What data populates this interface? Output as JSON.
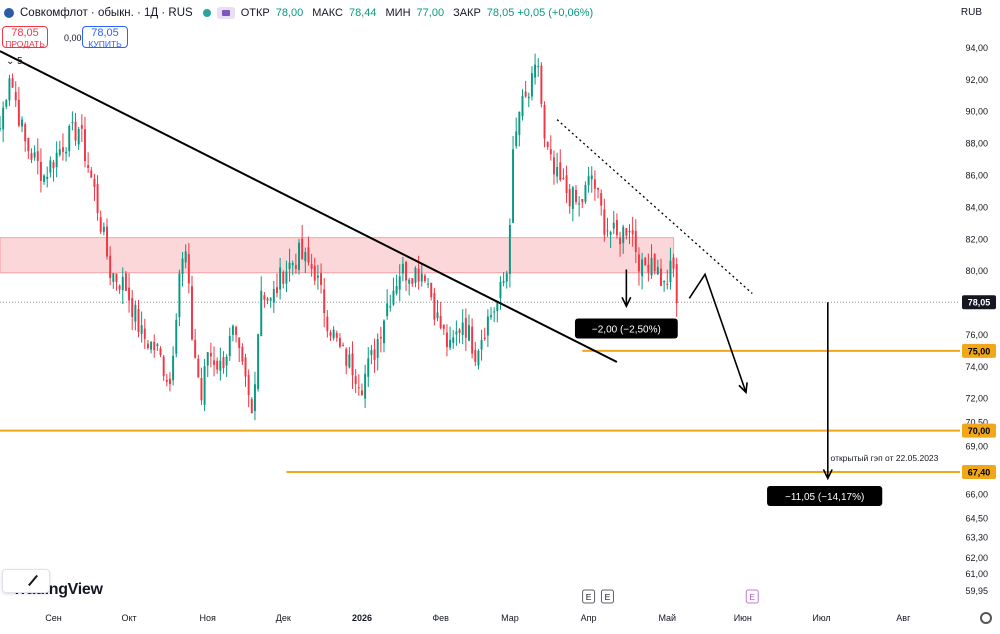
{
  "header": {
    "title": "Совкомфлот · обыкн. · 1Д · RUS",
    "ohlc": [
      {
        "k": "ОТКР",
        "v": "78,00"
      },
      {
        "k": "МАКС",
        "v": "78,44"
      },
      {
        "k": "МИН",
        "v": "77,00"
      },
      {
        "k": "ЗАКР",
        "v": "78,05 +0,05 (+0,06%)"
      }
    ],
    "currency": "RUB"
  },
  "trade": {
    "sell_price": "78,05",
    "sell_label": "ПРОДАТЬ",
    "spread": "0,00",
    "buy_price": "78,05",
    "buy_label": "КУПИТЬ"
  },
  "indicator_toggle": "5",
  "logo": "TradingView",
  "colors": {
    "up": "#089981",
    "down": "#f23645",
    "level": "#f0a81a",
    "zone": "#fcd7d9",
    "zone_border": "#f4a0a7",
    "label_dark": "#000000",
    "price_label": "#131722"
  },
  "chart_data": {
    "type": "candlestick",
    "symbol": "Совкомфлот",
    "timeframe": "1Д",
    "currency": "RUB",
    "ylim": [
      59.0,
      95.5
    ],
    "xlim": [
      0,
      305
    ],
    "price_ticks": [
      "94,00",
      "92,00",
      "90,00",
      "88,00",
      "86,00",
      "84,00",
      "82,00",
      "80,00",
      "76,00",
      "74,00",
      "72,00",
      "70,50",
      "69,00",
      "66,00",
      "64,50",
      "63,30",
      "62,00",
      "61,00",
      "59,95"
    ],
    "price_tick_values": [
      94,
      92,
      90,
      88,
      86,
      84,
      82,
      80,
      76,
      74,
      72,
      70.5,
      69,
      66,
      64.5,
      63.3,
      62,
      61,
      59.95
    ],
    "x_ticks": [
      {
        "label": "Сен",
        "x": 17,
        "bold": false
      },
      {
        "label": "Окт",
        "x": 41,
        "bold": false
      },
      {
        "label": "Ноя",
        "x": 66,
        "bold": false
      },
      {
        "label": "Дек",
        "x": 90,
        "bold": false
      },
      {
        "label": "2026",
        "x": 115,
        "bold": true
      },
      {
        "label": "Фев",
        "x": 140,
        "bold": false
      },
      {
        "label": "Мар",
        "x": 162,
        "bold": false
      },
      {
        "label": "Апр",
        "x": 187,
        "bold": false
      },
      {
        "label": "Май",
        "x": 212,
        "bold": false
      },
      {
        "label": "Июн",
        "x": 236,
        "bold": false
      },
      {
        "label": "Июл",
        "x": 261,
        "bold": false
      },
      {
        "label": "Авг",
        "x": 287,
        "bold": false
      }
    ],
    "waypoints": [
      [
        0,
        89
      ],
      [
        3,
        92.5
      ],
      [
        8,
        88
      ],
      [
        14,
        86
      ],
      [
        20,
        88
      ],
      [
        25,
        89
      ],
      [
        30,
        85
      ],
      [
        35,
        80
      ],
      [
        40,
        79
      ],
      [
        45,
        76
      ],
      [
        50,
        75
      ],
      [
        54,
        73
      ],
      [
        57,
        80
      ],
      [
        59,
        81
      ],
      [
        61,
        76
      ],
      [
        64,
        72
      ],
      [
        66,
        75
      ],
      [
        70,
        74
      ],
      [
        74,
        76
      ],
      [
        78,
        73
      ],
      [
        80,
        71
      ],
      [
        83,
        79
      ],
      [
        86,
        78
      ],
      [
        90,
        80
      ],
      [
        95,
        81
      ],
      [
        100,
        80
      ],
      [
        104,
        77
      ],
      [
        108,
        75
      ],
      [
        112,
        74
      ],
      [
        115,
        73
      ],
      [
        119,
        75
      ],
      [
        123,
        78
      ],
      [
        127,
        80
      ],
      [
        131,
        80
      ],
      [
        135,
        80
      ],
      [
        139,
        77
      ],
      [
        143,
        75
      ],
      [
        147,
        77
      ],
      [
        151,
        75
      ],
      [
        155,
        77
      ],
      [
        158,
        78
      ],
      [
        161,
        80
      ],
      [
        163,
        87
      ],
      [
        165,
        90
      ],
      [
        168,
        91
      ],
      [
        171,
        93
      ],
      [
        173,
        88
      ],
      [
        176,
        86
      ],
      [
        180,
        85
      ],
      [
        184,
        84
      ],
      [
        188,
        86
      ],
      [
        192,
        83
      ],
      [
        196,
        82
      ],
      [
        200,
        83
      ],
      [
        204,
        80
      ],
      [
        207,
        81
      ],
      [
        211,
        79
      ],
      [
        213,
        80
      ],
      [
        214,
        80
      ],
      [
        215,
        78
      ]
    ],
    "current_price": {
      "value": 78.05,
      "label": "78,05"
    },
    "levels": [
      {
        "value": 75.0,
        "label": "75,00",
        "x_start": 185
      },
      {
        "value": 70.0,
        "label": "70,00",
        "x_start": 0
      },
      {
        "value": 67.4,
        "label": "67,40",
        "x_start": 91
      }
    ],
    "resistance_zone": {
      "from": 79.9,
      "to": 82.1
    },
    "trendline": {
      "from": [
        0,
        93.8
      ],
      "to": [
        196,
        74.3
      ]
    },
    "dotted_trendline": {
      "from": [
        177,
        89.5
      ],
      "to": [
        239,
        78.6
      ]
    },
    "forecast_path": [
      [
        219,
        78.3
      ],
      [
        224,
        79.8
      ],
      [
        237,
        72.4
      ]
    ],
    "arrows": [
      {
        "from": [
          199,
          80.1
        ],
        "to": [
          199,
          77.8
        ]
      },
      {
        "from": [
          263,
          78.05
        ],
        "to": [
          263,
          67.0
        ]
      }
    ],
    "annotations": [
      {
        "text": "−2,00 (−2,50%)",
        "x": 199,
        "y": 76.4
      },
      {
        "text": "−11,05 (−14,17%)",
        "x": 262,
        "y": 65.9
      },
      {
        "text": "открытый гэп от 22.05.2023",
        "x": 281,
        "y": 68.1
      }
    ],
    "event_markers": [
      {
        "label": "E",
        "x": 187
      },
      {
        "label": "E",
        "x": 193
      },
      {
        "label": "E",
        "x": 239
      }
    ]
  }
}
